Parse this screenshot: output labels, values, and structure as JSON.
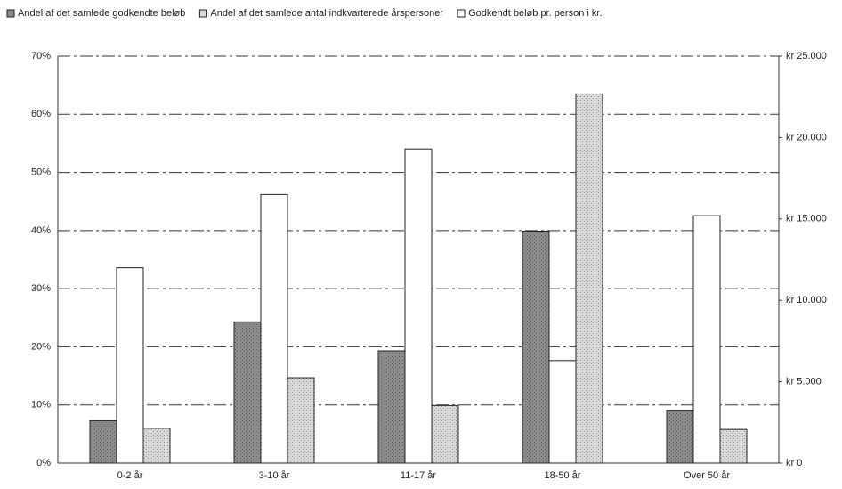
{
  "chart_data": {
    "type": "bar",
    "categories": [
      "0-2 år",
      "3-10 år",
      "11-17 år",
      "18-50 år",
      "Over 50 år"
    ],
    "series": [
      {
        "name": "Andel af det samlede godkendte beløb",
        "color": "#8c8c8c",
        "values": [
          7.3,
          24.3,
          19.3,
          39.9,
          9.1
        ]
      },
      {
        "name": "Andel af det samlede antal indkvarterede årspersoner",
        "color": "#d9d9d9",
        "values": [
          6.0,
          14.7,
          9.9,
          63.5,
          5.8
        ]
      },
      {
        "name": "Godkendt beløb pr. person i kr.",
        "color": "#ffffff",
        "axis": "y2",
        "values": [
          12000,
          16500,
          19300,
          6300,
          15200
        ]
      }
    ],
    "ylim": [
      0,
      70
    ],
    "yticks": [
      {
        "value": 0,
        "label": "0%"
      },
      {
        "value": 10,
        "label": "10%"
      },
      {
        "value": 20,
        "label": "20%"
      },
      {
        "value": 30,
        "label": "30%"
      },
      {
        "value": 40,
        "label": "40%"
      },
      {
        "value": 50,
        "label": "50%"
      },
      {
        "value": 60,
        "label": "60%"
      },
      {
        "value": 70,
        "label": "70%"
      }
    ],
    "y2lim": [
      0,
      25000
    ],
    "y2ticks": [
      {
        "value": 0,
        "label": "kr 0"
      },
      {
        "value": 5000,
        "label": "kr 5.000"
      },
      {
        "value": 10000,
        "label": "kr 10.000"
      },
      {
        "value": 15000,
        "label": "kr 15.000"
      },
      {
        "value": 20000,
        "label": "kr 20.000"
      },
      {
        "value": 25000,
        "label": "kr 25.000"
      }
    ],
    "grid": true,
    "legend": "top"
  }
}
